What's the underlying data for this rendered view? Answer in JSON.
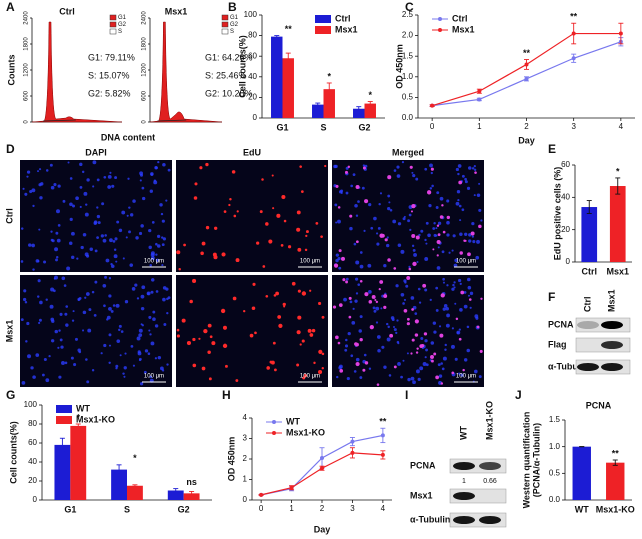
{
  "panel_letters": [
    "A",
    "B",
    "C",
    "D",
    "E",
    "F",
    "G",
    "H",
    "I",
    "J"
  ],
  "flow": {
    "ylabel": "Counts",
    "xlabel": "DNA content",
    "legend": [
      "G1",
      "G2",
      "S"
    ],
    "yticks": [
      0,
      600,
      1200,
      1800,
      2400
    ],
    "plots": [
      {
        "title": "Ctrl",
        "stats": [
          "G1: 79.11%",
          "S: 15.07%",
          "G2: 5.82%"
        ]
      },
      {
        "title": "Msx1",
        "stats": [
          "G1: 64.26%",
          "S: 25.46%",
          "G2: 10.28%"
        ]
      }
    ]
  },
  "chart_data": [
    {
      "type": "grouped_bar",
      "ylabel": "Cell counts(%)",
      "categories": [
        "G1",
        "S",
        "G2"
      ],
      "series": [
        {
          "name": "Ctrl",
          "color": "#1c1cd4",
          "values": [
            79,
            13,
            9
          ],
          "errors": [
            1,
            1.5,
            2
          ]
        },
        {
          "name": "Msx1",
          "color": "#ee2226",
          "values": [
            58,
            28,
            14
          ],
          "errors": [
            5,
            6,
            2
          ]
        }
      ],
      "annotations": [
        "**",
        "*",
        "*"
      ],
      "ylim": [
        0,
        100
      ],
      "yticks": [
        0,
        20,
        40,
        60,
        80,
        100
      ],
      "legend": "upper right"
    },
    {
      "type": "line",
      "ylabel": "OD 450nm",
      "xlabel": "Day",
      "x": [
        0,
        1,
        2,
        3,
        4
      ],
      "series": [
        {
          "name": "Ctrl",
          "color": "#7878ee",
          "values": [
            0.3,
            0.45,
            0.95,
            1.45,
            1.85
          ],
          "errors": [
            0.02,
            0.03,
            0.05,
            0.1,
            0.1
          ]
        },
        {
          "name": "Msx1",
          "color": "#ee2226",
          "values": [
            0.3,
            0.65,
            1.3,
            2.05,
            2.05
          ],
          "errors": [
            0.02,
            0.05,
            0.12,
            0.25,
            0.25
          ]
        }
      ],
      "annotations": [
        null,
        null,
        "**",
        "**",
        null
      ],
      "xlim": [
        -0.3,
        4.3
      ],
      "xticks": [
        0,
        1,
        2,
        3,
        4
      ],
      "ylim": [
        0,
        2.5
      ],
      "yticks": [
        {
          "value": 0,
          "label": "0.0"
        },
        0.5,
        {
          "value": 1,
          "label": "1.0"
        },
        1.5,
        {
          "value": 2,
          "label": "2.0"
        },
        2.5
      ],
      "legend": "upper left"
    },
    {
      "type": "bar",
      "ylabel": "EdU positive cells (%)",
      "categories": [
        "Ctrl",
        "Msx1"
      ],
      "values": [
        34,
        47
      ],
      "errors": [
        4,
        5
      ],
      "colors": [
        "#1c1cd4",
        "#ee2226"
      ],
      "annotations": [
        null,
        "*"
      ],
      "ylim": [
        0,
        60
      ],
      "yticks": [
        0,
        20,
        40,
        60
      ]
    },
    {
      "type": "grouped_bar",
      "ylabel": "Cell counts(%)",
      "categories": [
        "G1",
        "S",
        "G2"
      ],
      "series": [
        {
          "name": "WT",
          "color": "#1c1cd4",
          "values": [
            58,
            32,
            10
          ],
          "errors": [
            7,
            5,
            2
          ]
        },
        {
          "name": "Msx1-KO",
          "color": "#ee2226",
          "values": [
            78,
            15,
            7
          ],
          "errors": [
            2,
            1,
            2
          ]
        }
      ],
      "annotations": [
        "*",
        "*",
        "ns"
      ],
      "ylim": [
        0,
        100
      ],
      "yticks": [
        0,
        20,
        40,
        60,
        80,
        100
      ],
      "legend": "upper left"
    },
    {
      "type": "line",
      "ylabel": "OD 450nm",
      "xlabel": "Day",
      "x": [
        0,
        1,
        2,
        3,
        4
      ],
      "series": [
        {
          "name": "WT",
          "color": "#7878ee",
          "values": [
            0.25,
            0.55,
            2.05,
            2.85,
            3.15
          ],
          "errors": [
            0.02,
            0.1,
            0.5,
            0.2,
            0.35
          ]
        },
        {
          "name": "Msx1-KO",
          "color": "#ee2226",
          "values": [
            0.25,
            0.6,
            1.55,
            2.3,
            2.2
          ],
          "errors": [
            0.02,
            0.1,
            0.1,
            0.25,
            0.2
          ]
        }
      ],
      "annotations": [
        null,
        null,
        null,
        null,
        "**"
      ],
      "xlim": [
        -0.3,
        4.3
      ],
      "xticks": [
        0,
        1,
        2,
        3,
        4
      ],
      "ylim": [
        0,
        4
      ],
      "yticks": [
        0,
        1,
        2,
        3,
        4
      ],
      "legend": "upper left"
    },
    {
      "type": "bar",
      "title": "PCNA",
      "ylabel": [
        "Western quantification",
        "(PCNA/α-Tubulin)"
      ],
      "categories": [
        "WT",
        "Msx1-KO"
      ],
      "values": [
        1,
        0.7
      ],
      "errors": [
        0,
        0.05
      ],
      "colors": [
        "#1c1cd4",
        "#ee2226"
      ],
      "annotations": [
        null,
        "**"
      ],
      "ylim": [
        0,
        1.5
      ],
      "yticks": [
        {
          "value": 0,
          "label": "0.0"
        },
        0.5,
        {
          "value": 1,
          "label": "1.0"
        },
        1.5
      ]
    }
  ],
  "microscopy": {
    "columns": [
      "DAPI",
      "EdU",
      "Merged"
    ],
    "rows": [
      "Ctrl",
      "Msx1"
    ],
    "scale_bar": "100 μm"
  },
  "blots": [
    {
      "lanes": [
        "Ctrl",
        "Msx1"
      ],
      "bands": [
        "PCNA",
        "Flag",
        "α-Tubulin"
      ]
    },
    {
      "lanes": [
        "WT",
        "Msx1-KO"
      ],
      "bands": [
        "PCNA",
        "Msx1",
        "α-Tubulin"
      ],
      "quantification": [
        "1",
        "0.66"
      ]
    }
  ]
}
